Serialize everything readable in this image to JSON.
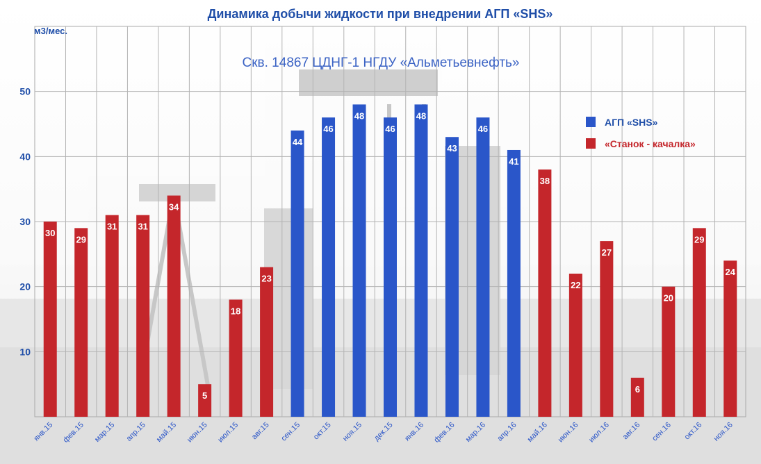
{
  "chart_data": {
    "type": "bar",
    "title": "Динамика добычи жидкости при внедрении АГП «SHS»",
    "subtitle": "Скв. 14867 ЦДНГ-1 НГДУ «Альметьевнефть»",
    "ylabel": "м3/мес.",
    "xlabel": "",
    "ylim": [
      0,
      60
    ],
    "yticks": [
      10,
      20,
      30,
      40,
      50
    ],
    "grid": true,
    "legend_position": "right",
    "categories": [
      "янв.15",
      "фев.15",
      "мар.15",
      "апр.15",
      "май.15",
      "июн.15",
      "июл.15",
      "авг.15",
      "сен.15",
      "окт.15",
      "ноя.15",
      "дек.15",
      "янв.16",
      "фев.16",
      "мар.16",
      "апр.16",
      "май.16",
      "июн.16",
      "июл.16",
      "авг.16",
      "сен.16",
      "окт.16",
      "ноя.16"
    ],
    "values": [
      30,
      29,
      31,
      31,
      34,
      5,
      18,
      23,
      44,
      46,
      48,
      46,
      48,
      43,
      46,
      41,
      38,
      22,
      27,
      6,
      20,
      29,
      24
    ],
    "series_index": [
      1,
      1,
      1,
      1,
      1,
      1,
      1,
      1,
      0,
      0,
      0,
      0,
      0,
      0,
      0,
      0,
      1,
      1,
      1,
      1,
      1,
      1,
      1
    ],
    "series": [
      {
        "name": "АГП «SHS»",
        "color": "#2a56c9"
      },
      {
        "name": "«Станок - качалка»",
        "color": "#c4262b"
      }
    ]
  }
}
